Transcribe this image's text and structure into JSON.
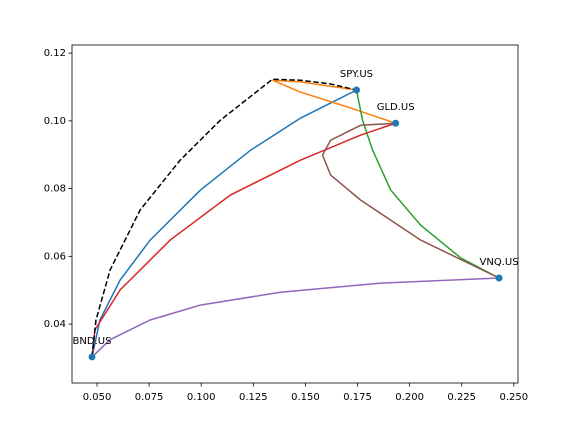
{
  "chart_data": {
    "type": "line",
    "xlim": [
      0.038,
      0.252
    ],
    "ylim": [
      0.0226,
      0.1224
    ],
    "xticks": [
      {
        "value": 0.05,
        "label": "0.050"
      },
      0.075,
      {
        "value": 0.1,
        "label": "0.100"
      },
      0.125,
      {
        "value": 0.15,
        "label": "0.150"
      },
      0.175,
      {
        "value": 0.2,
        "label": "0.200"
      },
      0.225,
      {
        "value": 0.25,
        "label": "0.250"
      }
    ],
    "yticks": [
      0.04,
      0.06,
      0.08,
      {
        "value": 0.1,
        "label": "0.10"
      },
      0.12
    ],
    "grid": false,
    "series": [
      {
        "color": "#1f77b4",
        "style": "solid",
        "x": [
          0.0476,
          0.0514,
          0.0611,
          0.0755,
          0.0995,
          0.1236,
          0.1476,
          0.1745
        ],
        "values": [
          0.0303,
          0.0412,
          0.053,
          0.0648,
          0.0795,
          0.0913,
          0.1008,
          0.1091
        ]
      },
      {
        "color": "#ff7f0e",
        "style": "solid",
        "x": [
          0.1745,
          0.1476,
          0.1342,
          0.1476,
          0.1717,
          0.1933
        ],
        "values": [
          0.1091,
          0.1115,
          0.112,
          0.1085,
          0.1038,
          0.0993
        ]
      },
      {
        "color": "#2ca02c",
        "style": "solid",
        "x": [
          0.1745,
          0.1774,
          0.1822,
          0.1909,
          0.2053,
          0.2246,
          0.2429
        ],
        "values": [
          0.1091,
          0.1002,
          0.0914,
          0.0796,
          0.0692,
          0.0595,
          0.0536
        ]
      },
      {
        "color": "#d62728",
        "style": "solid",
        "x": [
          0.0476,
          0.049,
          0.0611,
          0.0851,
          0.114,
          0.1476,
          0.1765,
          0.1933
        ],
        "values": [
          0.0303,
          0.0383,
          0.0501,
          0.0648,
          0.0781,
          0.0884,
          0.0958,
          0.0993
        ]
      },
      {
        "color": "#9467bd",
        "style": "solid",
        "x": [
          0.0476,
          0.0563,
          0.0755,
          0.0995,
          0.138,
          0.1861,
          0.2429
        ],
        "values": [
          0.0303,
          0.0354,
          0.0412,
          0.0456,
          0.0494,
          0.0521,
          0.0536
        ]
      },
      {
        "color": "#8c564b",
        "style": "solid",
        "x": [
          0.1933,
          0.1765,
          0.1621,
          0.1582,
          0.1621,
          0.1765,
          0.2053,
          0.2429
        ],
        "values": [
          0.0993,
          0.0987,
          0.0943,
          0.0899,
          0.084,
          0.0766,
          0.0648,
          0.0536
        ]
      },
      {
        "color": "#000000",
        "style": "dashed",
        "x": [
          0.0476,
          0.0495,
          0.0563,
          0.0707,
          0.0899,
          0.1092,
          0.1342,
          0.1476,
          0.162,
          0.1745
        ],
        "values": [
          0.0303,
          0.0412,
          0.056,
          0.0737,
          0.0884,
          0.1002,
          0.1123,
          0.112,
          0.1109,
          0.1091
        ]
      }
    ],
    "points": {
      "color": "#1f77b4",
      "labels": [
        "SPY.US",
        "GLD.US",
        "VNQ.US",
        "BND.US"
      ],
      "x": [
        0.1745,
        0.1933,
        0.2429,
        0.0476
      ],
      "values": [
        0.1091,
        0.0993,
        0.0536,
        0.0303
      ]
    }
  }
}
